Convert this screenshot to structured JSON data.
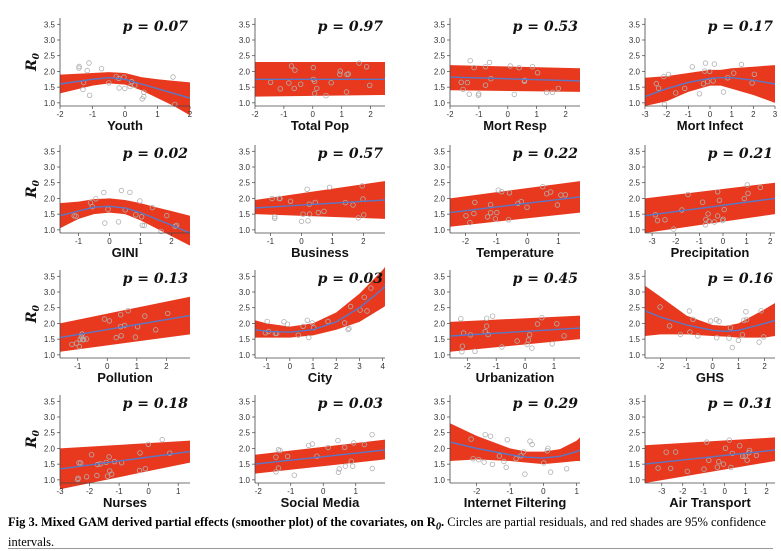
{
  "y_axis_label": "R",
  "y_axis_sub": "0",
  "caption": {
    "bold": "Fig 3. Mixed GAM derived partial effects (smoother plot) of the covariates, on R",
    "bold_sub": "0",
    "bold_end": ".",
    "rest": " Circles are partial residuals, and red shades are 95% confidence intervals."
  },
  "colors": {
    "band": "#e8391f",
    "line": "#5a78c8",
    "points": "#b0b0b0"
  },
  "chart_data": [
    {
      "type": "line",
      "xlabel": "Youth",
      "p_text": "p = 0.07",
      "xlim": [
        -2,
        2
      ],
      "ylim": [
        0.9,
        3.7
      ],
      "x_ticks": [
        -2,
        -1,
        0,
        1,
        2
      ],
      "y_ticks": [
        1.0,
        1.5,
        2.0,
        2.5,
        3.0,
        3.5
      ],
      "series": [
        {
          "x": [
            -2,
            -1,
            -0.5,
            0,
            0.5,
            1,
            1.5,
            2
          ],
          "y": [
            1.6,
            1.75,
            1.8,
            1.75,
            1.6,
            1.45,
            1.3,
            1.15
          ],
          "lower": [
            1.3,
            1.55,
            1.62,
            1.58,
            1.4,
            1.15,
            0.9,
            0.6
          ],
          "upper": [
            1.9,
            1.95,
            1.98,
            1.95,
            1.82,
            1.75,
            1.7,
            1.65
          ]
        }
      ]
    },
    {
      "type": "line",
      "xlabel": "Total Pop",
      "p_text": "p = 0.97",
      "xlim": [
        -2,
        2.5
      ],
      "ylim": [
        0.9,
        3.7
      ],
      "x_ticks": [
        -2,
        -1,
        0,
        1,
        2
      ],
      "y_ticks": [
        1.0,
        1.5,
        2.0,
        2.5,
        3.0,
        3.5
      ],
      "series": [
        {
          "x": [
            -2,
            2.5
          ],
          "y": [
            1.75,
            1.75
          ],
          "lower": [
            1.2,
            1.25
          ],
          "upper": [
            2.3,
            2.3
          ]
        }
      ]
    },
    {
      "type": "line",
      "xlabel": "Mort Resp",
      "p_text": "p = 0.53",
      "xlim": [
        -2,
        2.5
      ],
      "ylim": [
        0.9,
        3.7
      ],
      "x_ticks": [
        -2,
        -1,
        0,
        1,
        2
      ],
      "y_ticks": [
        1.0,
        1.5,
        2.0,
        2.5,
        3.0,
        3.5
      ],
      "series": [
        {
          "x": [
            -2,
            2.5
          ],
          "y": [
            1.82,
            1.7
          ],
          "lower": [
            1.4,
            1.35
          ],
          "upper": [
            2.2,
            2.1
          ]
        }
      ]
    },
    {
      "type": "line",
      "xlabel": "Mort Infect",
      "p_text": "p = 0.17",
      "xlim": [
        -3,
        3
      ],
      "ylim": [
        0.9,
        3.7
      ],
      "x_ticks": [
        -3,
        -2,
        -1,
        0,
        1,
        2,
        3
      ],
      "y_ticks": [
        1.0,
        1.5,
        2.0,
        2.5,
        3.0,
        3.5
      ],
      "series": [
        {
          "x": [
            -3,
            -2,
            -1,
            0,
            0.5,
            1,
            2,
            3
          ],
          "y": [
            1.2,
            1.45,
            1.65,
            1.78,
            1.8,
            1.8,
            1.72,
            1.6
          ],
          "lower": [
            0.9,
            1.05,
            1.35,
            1.55,
            1.55,
            1.45,
            1.25,
            1.0
          ],
          "upper": [
            1.8,
            1.85,
            1.95,
            2.05,
            2.05,
            2.1,
            2.15,
            2.2
          ]
        }
      ]
    },
    {
      "type": "line",
      "xlabel": "GINI",
      "p_text": "p = 0.02",
      "xlim": [
        -1.6,
        2.6
      ],
      "ylim": [
        0.9,
        3.7
      ],
      "x_ticks": [
        -1,
        0,
        1,
        2
      ],
      "y_ticks": [
        1.0,
        1.5,
        2.0,
        2.5,
        3.0,
        3.5
      ],
      "series": [
        {
          "x": [
            -1.6,
            -1,
            -0.5,
            0,
            0.5,
            1,
            1.5,
            2,
            2.6
          ],
          "y": [
            1.45,
            1.6,
            1.72,
            1.75,
            1.7,
            1.55,
            1.35,
            1.15,
            0.9
          ],
          "lower": [
            1.05,
            1.35,
            1.5,
            1.55,
            1.5,
            1.3,
            1.05,
            0.8,
            0.5
          ],
          "upper": [
            1.85,
            1.9,
            1.98,
            2.0,
            1.95,
            1.85,
            1.72,
            1.6,
            1.45
          ]
        }
      ]
    },
    {
      "type": "line",
      "xlabel": "Business",
      "p_text": "p = 0.57",
      "xlim": [
        -1.5,
        2.7
      ],
      "ylim": [
        0.9,
        3.7
      ],
      "x_ticks": [
        -1,
        0,
        1,
        2
      ],
      "y_ticks": [
        1.0,
        1.5,
        2.0,
        2.5,
        3.0,
        3.5
      ],
      "series": [
        {
          "x": [
            -1.5,
            2.7
          ],
          "y": [
            1.7,
            1.95
          ],
          "lower": [
            1.5,
            1.35
          ],
          "upper": [
            1.95,
            2.55
          ]
        }
      ]
    },
    {
      "type": "line",
      "xlabel": "Temperature",
      "p_text": "p = 0.22",
      "xlim": [
        -2.5,
        1.7
      ],
      "ylim": [
        0.9,
        3.7
      ],
      "x_ticks": [
        -2,
        -1,
        0,
        1
      ],
      "y_ticks": [
        1.0,
        1.5,
        2.0,
        2.5,
        3.0,
        3.5
      ],
      "series": [
        {
          "x": [
            -2.5,
            1.7
          ],
          "y": [
            1.55,
            2.05
          ],
          "lower": [
            1.1,
            1.55
          ],
          "upper": [
            2.0,
            2.55
          ]
        }
      ]
    },
    {
      "type": "line",
      "xlabel": "Precipitation",
      "p_text": "p = 0.21",
      "xlim": [
        -3.3,
        2.2
      ],
      "ylim": [
        0.9,
        3.7
      ],
      "x_ticks": [
        -3,
        -2,
        -1,
        0,
        1,
        2
      ],
      "y_ticks": [
        1.0,
        1.5,
        2.0,
        2.5,
        3.0,
        3.5
      ],
      "series": [
        {
          "x": [
            -3.3,
            2.2
          ],
          "y": [
            1.45,
            2.0
          ],
          "lower": [
            0.9,
            1.5
          ],
          "upper": [
            2.0,
            2.5
          ]
        }
      ]
    },
    {
      "type": "line",
      "xlabel": "Pollution",
      "p_text": "p = 0.13",
      "xlim": [
        -1.6,
        2.8
      ],
      "ylim": [
        0.9,
        3.7
      ],
      "x_ticks": [
        -1,
        0,
        1,
        2
      ],
      "y_ticks": [
        1.0,
        1.5,
        2.0,
        2.5,
        3.0,
        3.5
      ],
      "series": [
        {
          "x": [
            -1.6,
            2.8
          ],
          "y": [
            1.55,
            2.25
          ],
          "lower": [
            1.1,
            1.65
          ],
          "upper": [
            2.0,
            2.85
          ]
        }
      ]
    },
    {
      "type": "line",
      "xlabel": "City",
      "p_text": "p = 0.03",
      "xlim": [
        -1.5,
        4.1
      ],
      "ylim": [
        0.9,
        3.7
      ],
      "x_ticks": [
        -1,
        0,
        1,
        2,
        3,
        4
      ],
      "y_ticks": [
        1.0,
        1.5,
        2.0,
        2.5,
        3.0,
        3.5
      ],
      "series": [
        {
          "x": [
            -1.5,
            -1,
            0,
            1,
            2,
            3,
            4,
            4.1
          ],
          "y": [
            1.8,
            1.75,
            1.72,
            1.8,
            2.05,
            2.5,
            3.1,
            3.2
          ],
          "lower": [
            1.55,
            1.55,
            1.55,
            1.62,
            1.8,
            2.05,
            2.5,
            2.55
          ],
          "upper": [
            2.1,
            2.0,
            1.9,
            2.0,
            2.35,
            2.95,
            3.7,
            3.8
          ]
        }
      ]
    },
    {
      "type": "line",
      "xlabel": "Urbanization",
      "p_text": "p = 0.45",
      "xlim": [
        -2.6,
        1.9
      ],
      "ylim": [
        0.9,
        3.7
      ],
      "x_ticks": [
        -2,
        -1,
        0,
        1
      ],
      "y_ticks": [
        1.0,
        1.5,
        2.0,
        2.5,
        3.0,
        3.5
      ],
      "series": [
        {
          "x": [
            -2.6,
            1.9
          ],
          "y": [
            1.6,
            1.85
          ],
          "lower": [
            1.1,
            1.5
          ],
          "upper": [
            2.05,
            2.25
          ]
        }
      ]
    },
    {
      "type": "line",
      "xlabel": "GHS",
      "p_text": "p = 0.16",
      "xlim": [
        -2.6,
        2.4
      ],
      "ylim": [
        0.9,
        3.7
      ],
      "x_ticks": [
        -2,
        -1,
        0,
        1,
        2
      ],
      "y_ticks": [
        1.0,
        1.5,
        2.0,
        2.5,
        3.0,
        3.5
      ],
      "series": [
        {
          "x": [
            -2.6,
            -2,
            -1,
            0,
            0.5,
            1,
            2,
            2.4
          ],
          "y": [
            2.4,
            2.2,
            1.95,
            1.78,
            1.75,
            1.78,
            2.0,
            2.1
          ],
          "lower": [
            1.6,
            1.65,
            1.65,
            1.6,
            1.58,
            1.55,
            1.55,
            1.6
          ],
          "upper": [
            3.2,
            2.85,
            2.25,
            1.95,
            1.92,
            2.0,
            2.45,
            2.65
          ]
        }
      ]
    },
    {
      "type": "line",
      "xlabel": "Nurses",
      "p_text": "p = 0.18",
      "xlim": [
        -3,
        1.4
      ],
      "ylim": [
        0.9,
        3.7
      ],
      "x_ticks": [
        -3,
        -2,
        -1,
        0,
        1
      ],
      "y_ticks": [
        1.0,
        1.5,
        2.0,
        2.5,
        3.0,
        3.5
      ],
      "series": [
        {
          "x": [
            -3,
            1.4
          ],
          "y": [
            1.35,
            1.9
          ],
          "lower": [
            0.7,
            1.55
          ],
          "upper": [
            2.0,
            2.25
          ]
        }
      ]
    },
    {
      "type": "line",
      "xlabel": "Social Media",
      "p_text": "p = 0.03",
      "xlim": [
        -2.1,
        1.9
      ],
      "ylim": [
        0.9,
        3.7
      ],
      "x_ticks": [
        -2,
        -1,
        0,
        1
      ],
      "y_ticks": [
        1.0,
        1.5,
        2.0,
        2.5,
        3.0,
        3.5
      ],
      "series": [
        {
          "x": [
            -2.1,
            1.9
          ],
          "y": [
            1.5,
            1.95
          ],
          "lower": [
            1.2,
            1.65
          ],
          "upper": [
            1.8,
            2.28
          ]
        }
      ]
    },
    {
      "type": "line",
      "xlabel": "Internet Filtering",
      "p_text": "p = 0.29",
      "xlim": [
        -2.8,
        1.1
      ],
      "ylim": [
        0.9,
        3.7
      ],
      "x_ticks": [
        -2,
        -1,
        0,
        1
      ],
      "y_ticks": [
        1.0,
        1.5,
        2.0,
        2.5,
        3.0,
        3.5
      ],
      "series": [
        {
          "x": [
            -2.8,
            -2,
            -1,
            -0.5,
            0,
            0.5,
            1,
            1.1
          ],
          "y": [
            2.2,
            2.0,
            1.8,
            1.72,
            1.7,
            1.75,
            1.9,
            1.95
          ],
          "lower": [
            1.6,
            1.65,
            1.6,
            1.55,
            1.5,
            1.55,
            1.6,
            1.6
          ],
          "upper": [
            2.8,
            2.4,
            2.0,
            1.9,
            1.9,
            1.98,
            2.25,
            2.35
          ]
        }
      ]
    },
    {
      "type": "line",
      "xlabel": "Air Transport",
      "p_text": "p = 0.31",
      "xlim": [
        -3.8,
        2.4
      ],
      "ylim": [
        0.9,
        3.7
      ],
      "x_ticks": [
        -3,
        -2,
        -1,
        0,
        1,
        2
      ],
      "y_ticks": [
        1.0,
        1.5,
        2.0,
        2.5,
        3.0,
        3.5
      ],
      "series": [
        {
          "x": [
            -3.8,
            2.4
          ],
          "y": [
            1.5,
            1.95
          ],
          "lower": [
            0.9,
            1.6
          ],
          "upper": [
            2.1,
            2.35
          ]
        }
      ]
    }
  ]
}
